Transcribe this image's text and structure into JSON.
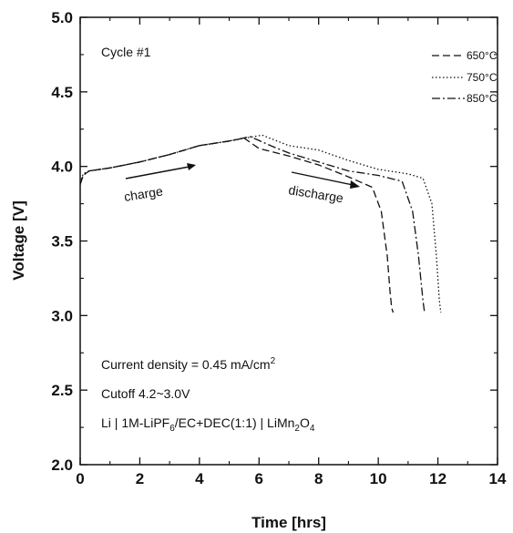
{
  "chart_data": {
    "type": "line",
    "xlabel": "Time [hrs]",
    "ylabel": "Voltage [V]",
    "xlim": [
      0,
      14
    ],
    "ylim": [
      2.0,
      5.0
    ],
    "xticks": [
      "0",
      "2",
      "4",
      "6",
      "8",
      "10",
      "12",
      "14"
    ],
    "yticks": [
      "2.0",
      "2.5",
      "3.0",
      "3.5",
      "4.0",
      "4.5",
      "5.0"
    ],
    "grid": false,
    "legend_position": "top-right",
    "series": [
      {
        "name": "650°C",
        "style": "dashed",
        "x": [
          0,
          0.1,
          0.3,
          1,
          2,
          3,
          4,
          5,
          5.5,
          6,
          7,
          8,
          9,
          9.8,
          10.1,
          10.3,
          10.4,
          10.45,
          10.5
        ],
        "y": [
          3.88,
          3.94,
          3.97,
          3.99,
          4.03,
          4.08,
          4.14,
          4.17,
          4.19,
          4.12,
          4.07,
          4.01,
          3.93,
          3.86,
          3.7,
          3.4,
          3.15,
          3.05,
          3.02
        ]
      },
      {
        "name": "750°C",
        "style": "dotted",
        "x": [
          0,
          0.1,
          0.3,
          1,
          2,
          3,
          4,
          5,
          6.1,
          7,
          8,
          9,
          10,
          11,
          11.5,
          11.8,
          11.95,
          12.05,
          12.1
        ],
        "y": [
          3.89,
          3.95,
          3.97,
          3.99,
          4.03,
          4.08,
          4.14,
          4.17,
          4.21,
          4.14,
          4.11,
          4.04,
          3.98,
          3.95,
          3.92,
          3.75,
          3.4,
          3.1,
          3.02
        ]
      },
      {
        "name": "850°C",
        "style": "dashdot",
        "x": [
          0,
          0.1,
          0.3,
          1,
          2,
          3,
          4,
          5,
          5.7,
          6.5,
          7,
          8,
          9,
          10,
          10.8,
          11.15,
          11.35,
          11.5,
          11.55
        ],
        "y": [
          3.88,
          3.94,
          3.97,
          3.99,
          4.03,
          4.08,
          4.14,
          4.17,
          4.2,
          4.13,
          4.09,
          4.03,
          3.97,
          3.94,
          3.9,
          3.7,
          3.4,
          3.1,
          3.02
        ]
      }
    ],
    "annotations": {
      "cycle": "Cycle #1",
      "charge": "charge",
      "discharge": "discharge",
      "current_density_prefix": "Current density = 0.45 mA/cm",
      "current_density_sup": "2",
      "cutoff": "Cutoff 4.2~3.0V",
      "cell_li": "Li | 1M-LiPF",
      "cell_sub1": "6",
      "cell_mid": "/EC+DEC(1:1) | LiMn",
      "cell_sub2": "2",
      "cell_o": "O",
      "cell_sub3": "4"
    }
  }
}
